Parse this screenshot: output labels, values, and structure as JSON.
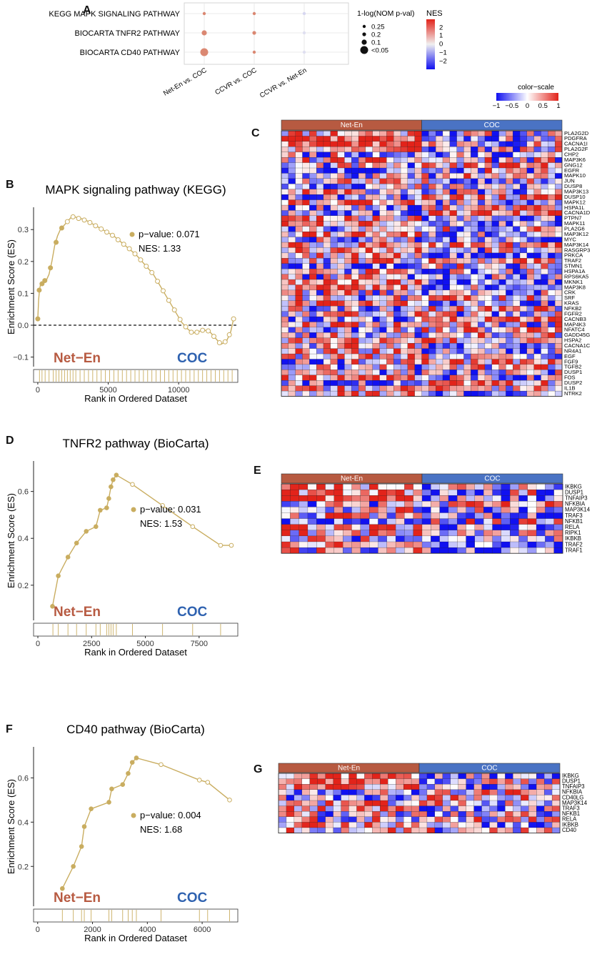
{
  "panel_labels": {
    "A": "A",
    "B": "B",
    "C": "C",
    "D": "D",
    "E": "E",
    "F": "F",
    "G": "G"
  },
  "colors": {
    "netEn": "#b75a41",
    "coc": "#2f62b0",
    "coc_bar": "#4a73c4",
    "gsea": "#c9ad60",
    "heat_high": "#e2231a",
    "heat_low": "#1010f0",
    "dot_fill": "#d9826a"
  },
  "chart_data": [
    {
      "id": "A",
      "type": "scatter",
      "title": "",
      "xlabel": "",
      "ylabel": "",
      "x_categories": [
        "Net-En vs. COC",
        "CCVR vs. COC",
        "CCVR vs. Net-En"
      ],
      "y_categories": [
        "KEGG MAPK SIGNALING PATHWAY",
        "BIOCARTA TNFR2 PATHWAY",
        "BIOCARTA CD40 PATHWAY"
      ],
      "points": [
        {
          "x": "Net-En vs. COC",
          "y": "KEGG MAPK SIGNALING PATHWAY",
          "size": 0.25,
          "nes": 1.33
        },
        {
          "x": "CCVR vs. COC",
          "y": "KEGG MAPK SIGNALING PATHWAY",
          "size": 0.25,
          "nes": 1.1
        },
        {
          "x": "CCVR vs. Net-En",
          "y": "KEGG MAPK SIGNALING PATHWAY",
          "size": 0.25,
          "nes": -0.3
        },
        {
          "x": "Net-En vs. COC",
          "y": "BIOCARTA TNFR2 PATHWAY",
          "size": 0.1,
          "nes": 1.53
        },
        {
          "x": "CCVR vs. COC",
          "y": "BIOCARTA TNFR2 PATHWAY",
          "size": 0.2,
          "nes": 1.3
        },
        {
          "x": "CCVR vs. Net-En",
          "y": "BIOCARTA TNFR2 PATHWAY",
          "size": 0.25,
          "nes": -0.2
        },
        {
          "x": "Net-En vs. COC",
          "y": "BIOCARTA CD40 PATHWAY",
          "size": 0.05,
          "nes": 1.68
        },
        {
          "x": "CCVR vs. COC",
          "y": "BIOCARTA CD40 PATHWAY",
          "size": 0.25,
          "nes": 0.9
        },
        {
          "x": "CCVR vs. Net-En",
          "y": "BIOCARTA CD40 PATHWAY",
          "size": 0.25,
          "nes": -0.2
        }
      ],
      "size_legend": {
        "title": "1-log(NOM p-val)",
        "entries": [
          "0.25",
          "0.2",
          "0.1",
          "<0.05"
        ]
      },
      "color_legend": {
        "title": "NES",
        "ticks": [
          "2",
          "1",
          "0",
          "−1",
          "−2"
        ],
        "range": [
          -2.5,
          2.5
        ]
      }
    },
    {
      "id": "B",
      "type": "line",
      "title": "MAPK signaling pathway (KEGG)",
      "xlabel": "Rank in Ordered Dataset",
      "ylabel": "Enrichment Score (ES)",
      "xlim": [
        -300,
        14200
      ],
      "ylim": [
        -0.13,
        0.37
      ],
      "xticks": [
        0,
        5000,
        10000
      ],
      "yticks": [
        -0.1,
        0.0,
        0.1,
        0.2,
        0.3
      ],
      "ytick_labels": [
        "−0.1",
        "0.0",
        "0.1",
        "0.2",
        "0.3"
      ],
      "zero_line": true,
      "annotation": {
        "pvalue": "p−value: 0.071",
        "nes": "NES: 1.33"
      },
      "group_labels": {
        "left": "Net−En",
        "right": "COC"
      },
      "curve": [
        [
          0,
          0.02
        ],
        [
          60,
          0.08
        ],
        [
          120,
          0.11
        ],
        [
          200,
          0.13
        ],
        [
          400,
          0.135
        ],
        [
          600,
          0.14
        ],
        [
          800,
          0.16
        ],
        [
          1000,
          0.2
        ],
        [
          1200,
          0.25
        ],
        [
          1400,
          0.28
        ],
        [
          1600,
          0.3
        ],
        [
          1800,
          0.31
        ],
        [
          2000,
          0.32
        ],
        [
          2200,
          0.33
        ],
        [
          2400,
          0.34
        ],
        [
          2600,
          0.34
        ],
        [
          3000,
          0.335
        ],
        [
          3400,
          0.33
        ],
        [
          3800,
          0.32
        ],
        [
          4200,
          0.31
        ],
        [
          4600,
          0.3
        ],
        [
          5000,
          0.29
        ],
        [
          5400,
          0.28
        ],
        [
          5800,
          0.265
        ],
        [
          6200,
          0.25
        ],
        [
          6600,
          0.235
        ],
        [
          7000,
          0.22
        ],
        [
          7400,
          0.2
        ],
        [
          7800,
          0.18
        ],
        [
          8200,
          0.16
        ],
        [
          8600,
          0.13
        ],
        [
          9000,
          0.1
        ],
        [
          9400,
          0.07
        ],
        [
          9800,
          0.04
        ],
        [
          10200,
          0.01
        ],
        [
          10600,
          -0.01
        ],
        [
          11000,
          -0.025
        ],
        [
          11400,
          -0.02
        ],
        [
          11800,
          -0.015
        ],
        [
          12200,
          -0.02
        ],
        [
          12600,
          -0.04
        ],
        [
          13000,
          -0.06
        ],
        [
          13400,
          -0.05
        ],
        [
          13700,
          -0.02
        ],
        [
          13900,
          0.02
        ]
      ],
      "annotated_points": [
        [
          0,
          0.02
        ],
        [
          100,
          0.11
        ],
        [
          300,
          0.13
        ],
        [
          500,
          0.14
        ],
        [
          900,
          0.18
        ],
        [
          1300,
          0.26
        ],
        [
          1700,
          0.305
        ],
        [
          2100,
          0.325
        ],
        [
          2500,
          0.34
        ],
        [
          2900,
          0.335
        ],
        [
          3300,
          0.33
        ],
        [
          3700,
          0.322
        ],
        [
          4100,
          0.312
        ],
        [
          4500,
          0.302
        ],
        [
          4900,
          0.292
        ],
        [
          5300,
          0.282
        ],
        [
          5700,
          0.268
        ],
        [
          6100,
          0.254
        ],
        [
          6500,
          0.24
        ],
        [
          6900,
          0.224
        ],
        [
          7300,
          0.205
        ],
        [
          7700,
          0.185
        ],
        [
          8100,
          0.165
        ],
        [
          8500,
          0.138
        ],
        [
          8900,
          0.108
        ],
        [
          9300,
          0.078
        ],
        [
          9700,
          0.048
        ],
        [
          10100,
          0.018
        ],
        [
          10500,
          -0.005
        ],
        [
          10900,
          -0.022
        ],
        [
          11300,
          -0.022
        ],
        [
          11700,
          -0.016
        ],
        [
          12100,
          -0.018
        ],
        [
          12500,
          -0.035
        ],
        [
          12900,
          -0.055
        ],
        [
          13300,
          -0.052
        ],
        [
          13600,
          -0.03
        ],
        [
          13900,
          0.02
        ]
      ],
      "hit_ranks": [
        120,
        300,
        520,
        800,
        1100,
        1300,
        1500,
        1700,
        1900,
        2100,
        2300,
        2500,
        2700,
        3000,
        3300,
        3600,
        3900,
        4200,
        4500,
        4800,
        5100,
        5400,
        5700,
        6000,
        6300,
        6600,
        6900,
        7200,
        7500,
        7800,
        8100,
        8400,
        8700,
        9000,
        9300,
        9600,
        9900,
        10200,
        10500,
        10800,
        11100,
        11400,
        11700,
        12000,
        12300,
        12600,
        12900,
        13200,
        13500,
        13800
      ]
    },
    {
      "id": "D",
      "type": "line",
      "title": "TNFR2 pathway (BioCarta)",
      "xlabel": "Rank in Ordered Dataset",
      "ylabel": "Enrichment Score (ES)",
      "xlim": [
        -200,
        9300
      ],
      "ylim": [
        0.05,
        0.73
      ],
      "xticks": [
        0,
        2500,
        5000,
        7500
      ],
      "yticks": [
        0.2,
        0.4,
        0.6
      ],
      "ytick_labels": [
        "0.2",
        "0.4",
        "0.6"
      ],
      "annotation": {
        "pvalue": "p−value: 0.031",
        "nes": "NES: 1.53"
      },
      "group_labels": {
        "left": "Net−En",
        "right": "COC"
      },
      "curve": [
        [
          680,
          0.11
        ],
        [
          950,
          0.24
        ],
        [
          1400,
          0.32
        ],
        [
          1800,
          0.38
        ],
        [
          2250,
          0.43
        ],
        [
          2700,
          0.45
        ],
        [
          2900,
          0.52
        ],
        [
          3200,
          0.53
        ],
        [
          3300,
          0.57
        ],
        [
          3400,
          0.62
        ],
        [
          3500,
          0.65
        ],
        [
          3650,
          0.67
        ],
        [
          4400,
          0.63
        ],
        [
          5800,
          0.54
        ],
        [
          7200,
          0.45
        ],
        [
          8500,
          0.37
        ],
        [
          9000,
          0.37
        ]
      ],
      "hit_ranks": [
        700,
        950,
        1400,
        1800,
        2250,
        2700,
        2900,
        3200,
        3300,
        3400,
        3500,
        3650,
        4400,
        5800,
        7200,
        8500
      ]
    },
    {
      "id": "F",
      "type": "line",
      "title": "CD40 pathway (BioCarta)",
      "xlabel": "Rank in Ordered Dataset",
      "ylabel": "Enrichment Score (ES)",
      "xlim": [
        -150,
        7300
      ],
      "ylim": [
        0.02,
        0.74
      ],
      "xticks": [
        0,
        2000,
        4000,
        6000
      ],
      "yticks": [
        0.2,
        0.4,
        0.6
      ],
      "ytick_labels": [
        "0.2",
        "0.4",
        "0.6"
      ],
      "annotation": {
        "pvalue": "p−value: 0.004",
        "nes": "NES: 1.68"
      },
      "group_labels": {
        "left": "Net−En",
        "right": "COC"
      },
      "curve": [
        [
          900,
          0.1
        ],
        [
          1300,
          0.2
        ],
        [
          1600,
          0.29
        ],
        [
          1700,
          0.38
        ],
        [
          1950,
          0.46
        ],
        [
          2600,
          0.49
        ],
        [
          2700,
          0.55
        ],
        [
          3100,
          0.57
        ],
        [
          3300,
          0.62
        ],
        [
          3450,
          0.67
        ],
        [
          3600,
          0.69
        ],
        [
          4500,
          0.66
        ],
        [
          5900,
          0.59
        ],
        [
          6200,
          0.58
        ],
        [
          7000,
          0.5
        ]
      ],
      "hit_ranks": [
        900,
        1300,
        1600,
        1700,
        1950,
        2600,
        2700,
        3100,
        3300,
        3450,
        3600,
        4500,
        5900,
        6200,
        7000
      ]
    },
    {
      "id": "C",
      "type": "heatmap",
      "groups": [
        "Net-En",
        "COC"
      ],
      "n_cols_per_group": [
        20,
        20
      ],
      "color_scale": {
        "title": "color−scale",
        "ticks": [
          "−1",
          "−0.5",
          "0",
          "0.5",
          "1"
        ],
        "range": [
          -1,
          1
        ]
      },
      "rows": [
        "PLA2G2D",
        "PDGFRA",
        "CACNA1I",
        "PLA2G2F",
        "CHP2",
        "MAP3K6",
        "GNG12",
        "EGFR",
        "MAPK10",
        "JUN",
        "DUSP8",
        "MAP3K13",
        "DUSP10",
        "MAPK12",
        "HSPA1L",
        "CACNA1D",
        "PTPN7",
        "MAPK11",
        "PLA2G6",
        "MAP3K12",
        "MYC",
        "MAP3K14",
        "RASGRP3",
        "PRKCA",
        "TRAF2",
        "STMN1",
        "HSPA1A",
        "RPS6KA5",
        "MKNK1",
        "MAP3K8",
        "CRK",
        "SRF",
        "KRAS",
        "NFKB2",
        "FGFR2",
        "CACNB3",
        "MAP4K3",
        "NFATC4",
        "GADD45G",
        "HSPA2",
        "CACNA1C",
        "NR4A1",
        "EGF",
        "FGF9",
        "TGFB2",
        "DUSP1",
        "FOS",
        "DUSP2",
        "IL1B",
        "NTRK2"
      ],
      "seed": 11
    },
    {
      "id": "E",
      "type": "heatmap",
      "groups": [
        "Net-En",
        "COC"
      ],
      "n_cols_per_group": [
        16,
        16
      ],
      "rows": [
        "IKBKG",
        "DUSP1",
        "TNFAIP3",
        "NFKBIA",
        "MAP3K14",
        "TRAF3",
        "NFKB1",
        "RELA",
        "RIPK1",
        "IKBKB",
        "TRAF2",
        "TRAF1"
      ],
      "seed": 23
    },
    {
      "id": "G",
      "type": "heatmap",
      "groups": [
        "Net-En",
        "COC"
      ],
      "n_cols_per_group": [
        18,
        18
      ],
      "rows": [
        "IKBKG",
        "DUSP1",
        "TNFAIP3",
        "NFKBIA",
        "CD40LG",
        "MAP3K14",
        "TRAF3",
        "NFKB1",
        "RELA",
        "IKBKB",
        "CD40"
      ],
      "seed": 37
    }
  ]
}
